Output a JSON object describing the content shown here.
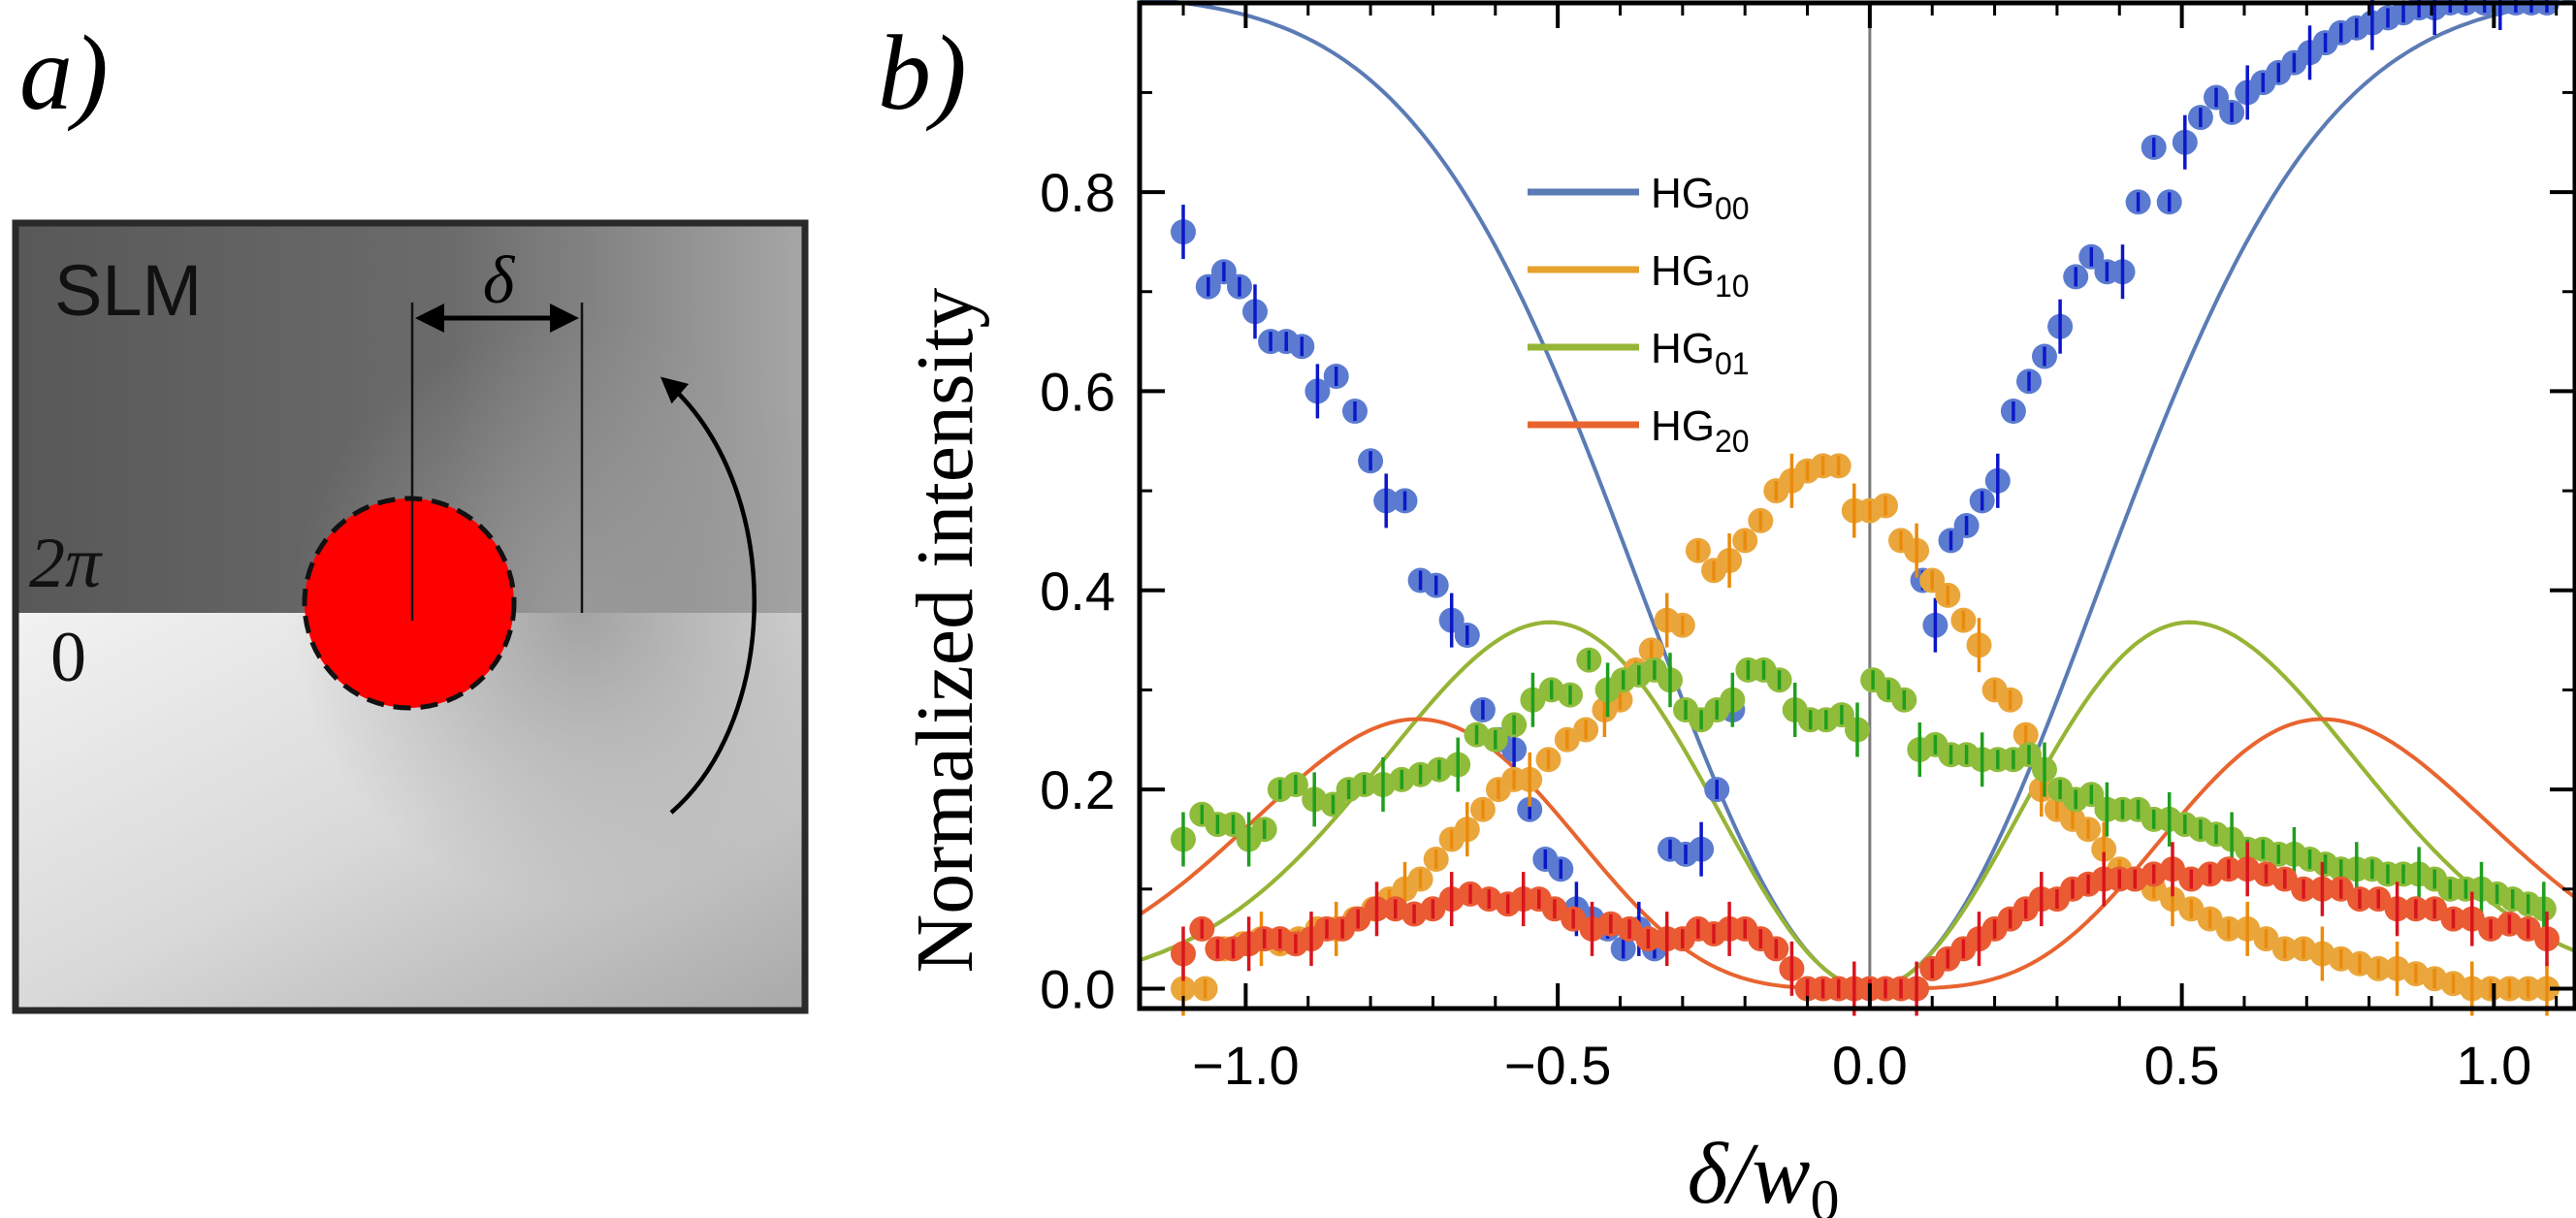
{
  "panel_a": {
    "label": "a)",
    "slm_label": "SLM",
    "delta_label": "δ",
    "phase_top_label": "2π",
    "phase_bottom_label": "0"
  },
  "panel_b": {
    "label": "b)"
  },
  "colors": {
    "HG00_fit": "#5b7bb5",
    "HG00_point": "#5b7bd0",
    "HG00_error": "#0d17c8",
    "HG10_fit": "#e6a22c",
    "HG10_point": "#eaa63a",
    "HG10_error": "#ea8a0c",
    "HG01_fit": "#94b536",
    "HG01_point": "#8fbc3a",
    "HG01_error": "#1f9e1f",
    "HG20_fit": "#e8642f",
    "HG20_point": "#ea5a33",
    "HG20_error": "#d8141e"
  },
  "chart_data": {
    "type": "scatter",
    "xlabel": "δ/w0",
    "ylabel": "Normalized intensity",
    "xlim": [
      -1.17,
      1.13
    ],
    "ylim": [
      -0.02,
      0.99
    ],
    "xticks": [
      -1.0,
      -0.5,
      0.0,
      0.5,
      1.0
    ],
    "xtick_labels": [
      "−1.0",
      "−0.5",
      "0.0",
      "0.5",
      "1.0"
    ],
    "yticks": [
      0.0,
      0.2,
      0.4,
      0.6,
      0.8
    ],
    "ytick_labels": [
      "0.0",
      "0.2",
      "0.4",
      "0.6",
      "0.8"
    ],
    "vertical_line_x": 0.0,
    "legend_position": "top-left",
    "series": [
      {
        "name": "HG00",
        "legend_main": "HG",
        "legend_sub": "00",
        "fit": "1 - exp(-x^2)",
        "x": [
          -1.1,
          -1.06,
          -1.035,
          -1.01,
          -0.985,
          -0.96,
          -0.935,
          -0.91,
          -0.885,
          -0.855,
          -0.825,
          -0.8,
          -0.775,
          -0.745,
          -0.72,
          -0.695,
          -0.67,
          -0.645,
          -0.62,
          -0.595,
          -0.57,
          -0.545,
          -0.52,
          -0.495,
          -0.47,
          -0.445,
          -0.42,
          -0.395,
          -0.37,
          -0.345,
          -0.32,
          -0.295,
          -0.27,
          -0.245,
          -0.22,
          0.085,
          0.105,
          0.13,
          0.155,
          0.18,
          0.205,
          0.23,
          0.255,
          0.28,
          0.305,
          0.33,
          0.355,
          0.38,
          0.405,
          0.43,
          0.455,
          0.48,
          0.505,
          0.53,
          0.555,
          0.58,
          0.605,
          0.63,
          0.655,
          0.68,
          0.705,
          0.73,
          0.755,
          0.78,
          0.805,
          0.83,
          0.855,
          0.88,
          0.905,
          0.93,
          0.955,
          0.985,
          1.01,
          1.035,
          1.06,
          1.085
        ],
        "y": [
          0.76,
          0.705,
          0.72,
          0.705,
          0.68,
          0.65,
          0.65,
          0.645,
          0.6,
          0.615,
          0.58,
          0.53,
          0.49,
          0.49,
          0.41,
          0.405,
          0.37,
          0.355,
          0.28,
          0.25,
          0.24,
          0.18,
          0.13,
          0.12,
          0.08,
          0.07,
          0.06,
          0.04,
          0.06,
          0.04,
          0.14,
          0.135,
          0.14,
          0.2,
          0.28,
          0.41,
          0.365,
          0.45,
          0.465,
          0.49,
          0.51,
          0.58,
          0.61,
          0.635,
          0.665,
          0.715,
          0.735,
          0.72,
          0.72,
          0.79,
          0.845,
          0.79,
          0.85,
          0.875,
          0.895,
          0.88,
          0.9,
          0.91,
          0.92,
          0.93,
          0.94,
          0.95,
          0.96,
          0.965,
          0.97,
          0.975,
          0.98,
          0.985,
          0.985,
          0.99,
          0.99,
          0.99,
          0.99,
          0.99,
          0.99,
          0.99
        ]
      },
      {
        "name": "HG10",
        "legend_main": "HG",
        "legend_sub": "10",
        "fit": "x^2 exp(-x^2)",
        "x": [
          -1.1,
          -1.065,
          -1.035,
          -1.005,
          -0.975,
          -0.945,
          -0.915,
          -0.885,
          -0.855,
          -0.825,
          -0.795,
          -0.77,
          -0.745,
          -0.72,
          -0.695,
          -0.67,
          -0.645,
          -0.62,
          -0.595,
          -0.57,
          -0.545,
          -0.515,
          -0.485,
          -0.455,
          -0.425,
          -0.4,
          -0.375,
          -0.35,
          -0.325,
          -0.3,
          -0.275,
          -0.25,
          -0.225,
          -0.2,
          -0.175,
          -0.15,
          -0.125,
          -0.1,
          -0.075,
          -0.05,
          -0.025,
          0.0,
          0.025,
          0.05,
          0.075,
          0.1,
          0.125,
          0.15,
          0.175,
          0.2,
          0.225,
          0.25,
          0.275,
          0.3,
          0.325,
          0.35,
          0.375,
          0.4,
          0.425,
          0.455,
          0.485,
          0.515,
          0.545,
          0.575,
          0.605,
          0.635,
          0.665,
          0.695,
          0.725,
          0.755,
          0.785,
          0.815,
          0.845,
          0.875,
          0.905,
          0.935,
          0.965,
          0.995,
          1.025,
          1.055,
          1.085
        ],
        "y": [
          0.0,
          0.0,
          0.04,
          0.045,
          0.05,
          0.045,
          0.05,
          0.06,
          0.06,
          0.07,
          0.08,
          0.09,
          0.1,
          0.11,
          0.13,
          0.15,
          0.16,
          0.18,
          0.2,
          0.21,
          0.21,
          0.23,
          0.25,
          0.26,
          0.28,
          0.29,
          0.32,
          0.34,
          0.37,
          0.365,
          0.44,
          0.42,
          0.43,
          0.45,
          0.47,
          0.5,
          0.51,
          0.52,
          0.525,
          0.525,
          0.48,
          0.48,
          0.485,
          0.45,
          0.44,
          0.41,
          0.395,
          0.37,
          0.345,
          0.3,
          0.29,
          0.255,
          0.2,
          0.18,
          0.17,
          0.16,
          0.14,
          0.12,
          0.11,
          0.1,
          0.09,
          0.08,
          0.07,
          0.06,
          0.06,
          0.05,
          0.04,
          0.04,
          0.035,
          0.03,
          0.025,
          0.02,
          0.02,
          0.015,
          0.01,
          0.005,
          0.0,
          0.0,
          0.0,
          0.0,
          0.0
        ]
      },
      {
        "name": "HG01",
        "legend_main": "HG",
        "legend_sub": "01",
        "fit": "x^2 exp(-x^2)",
        "x": [
          -1.1,
          -1.07,
          -1.045,
          -1.02,
          -0.995,
          -0.97,
          -0.945,
          -0.92,
          -0.89,
          -0.86,
          -0.835,
          -0.81,
          -0.78,
          -0.75,
          -0.72,
          -0.69,
          -0.66,
          -0.63,
          -0.6,
          -0.57,
          -0.54,
          -0.51,
          -0.48,
          -0.45,
          -0.42,
          -0.395,
          -0.37,
          -0.345,
          -0.32,
          -0.295,
          -0.27,
          -0.245,
          -0.22,
          -0.195,
          -0.17,
          -0.145,
          -0.12,
          -0.095,
          -0.07,
          -0.045,
          -0.02,
          0.005,
          0.03,
          0.055,
          0.08,
          0.105,
          0.13,
          0.155,
          0.18,
          0.205,
          0.23,
          0.255,
          0.28,
          0.305,
          0.33,
          0.355,
          0.38,
          0.405,
          0.43,
          0.455,
          0.48,
          0.505,
          0.53,
          0.555,
          0.58,
          0.605,
          0.63,
          0.655,
          0.68,
          0.705,
          0.73,
          0.755,
          0.78,
          0.805,
          0.83,
          0.855,
          0.88,
          0.905,
          0.93,
          0.955,
          0.98,
          1.005,
          1.03,
          1.055,
          1.08
        ],
        "y": [
          0.15,
          0.175,
          0.165,
          0.165,
          0.15,
          0.16,
          0.2,
          0.205,
          0.19,
          0.185,
          0.2,
          0.205,
          0.205,
          0.21,
          0.215,
          0.22,
          0.225,
          0.255,
          0.25,
          0.265,
          0.29,
          0.3,
          0.295,
          0.33,
          0.3,
          0.31,
          0.315,
          0.32,
          0.31,
          0.28,
          0.27,
          0.28,
          0.29,
          0.32,
          0.32,
          0.31,
          0.28,
          0.27,
          0.27,
          0.275,
          0.26,
          0.31,
          0.3,
          0.29,
          0.24,
          0.245,
          0.235,
          0.235,
          0.23,
          0.23,
          0.23,
          0.235,
          0.22,
          0.2,
          0.19,
          0.195,
          0.18,
          0.18,
          0.18,
          0.17,
          0.17,
          0.165,
          0.16,
          0.155,
          0.15,
          0.14,
          0.14,
          0.135,
          0.135,
          0.13,
          0.125,
          0.12,
          0.12,
          0.12,
          0.115,
          0.115,
          0.115,
          0.11,
          0.1,
          0.1,
          0.1,
          0.095,
          0.09,
          0.085,
          0.08
        ]
      },
      {
        "name": "HG20",
        "legend_main": "HG",
        "legend_sub": "20",
        "fit": "0.5 x^4 exp(-x^2)",
        "x": [
          -1.1,
          -1.07,
          -1.045,
          -1.02,
          -0.995,
          -0.97,
          -0.945,
          -0.92,
          -0.895,
          -0.87,
          -0.845,
          -0.82,
          -0.79,
          -0.76,
          -0.73,
          -0.7,
          -0.67,
          -0.64,
          -0.61,
          -0.58,
          -0.555,
          -0.53,
          -0.505,
          -0.475,
          -0.445,
          -0.415,
          -0.385,
          -0.355,
          -0.325,
          -0.3,
          -0.275,
          -0.25,
          -0.225,
          -0.2,
          -0.175,
          -0.15,
          -0.125,
          -0.1,
          -0.075,
          -0.05,
          -0.025,
          0.0,
          0.025,
          0.05,
          0.075,
          0.1,
          0.125,
          0.15,
          0.175,
          0.2,
          0.225,
          0.25,
          0.275,
          0.3,
          0.325,
          0.35,
          0.375,
          0.4,
          0.425,
          0.455,
          0.485,
          0.515,
          0.545,
          0.575,
          0.605,
          0.635,
          0.665,
          0.695,
          0.725,
          0.755,
          0.785,
          0.815,
          0.845,
          0.875,
          0.905,
          0.935,
          0.965,
          0.995,
          1.025,
          1.055,
          1.085
        ],
        "y": [
          0.035,
          0.06,
          0.04,
          0.04,
          0.045,
          0.05,
          0.05,
          0.045,
          0.05,
          0.06,
          0.06,
          0.07,
          0.08,
          0.08,
          0.075,
          0.08,
          0.09,
          0.095,
          0.09,
          0.085,
          0.09,
          0.09,
          0.08,
          0.07,
          0.06,
          0.065,
          0.06,
          0.05,
          0.05,
          0.05,
          0.06,
          0.055,
          0.06,
          0.06,
          0.05,
          0.04,
          0.02,
          0.0,
          0.0,
          0.0,
          0.0,
          0.0,
          0.0,
          0.0,
          0.0,
          0.02,
          0.03,
          0.04,
          0.05,
          0.06,
          0.07,
          0.08,
          0.09,
          0.09,
          0.1,
          0.105,
          0.11,
          0.11,
          0.11,
          0.115,
          0.12,
          0.11,
          0.115,
          0.12,
          0.12,
          0.115,
          0.11,
          0.1,
          0.1,
          0.1,
          0.09,
          0.09,
          0.08,
          0.08,
          0.08,
          0.07,
          0.07,
          0.06,
          0.065,
          0.06,
          0.05
        ]
      }
    ]
  }
}
